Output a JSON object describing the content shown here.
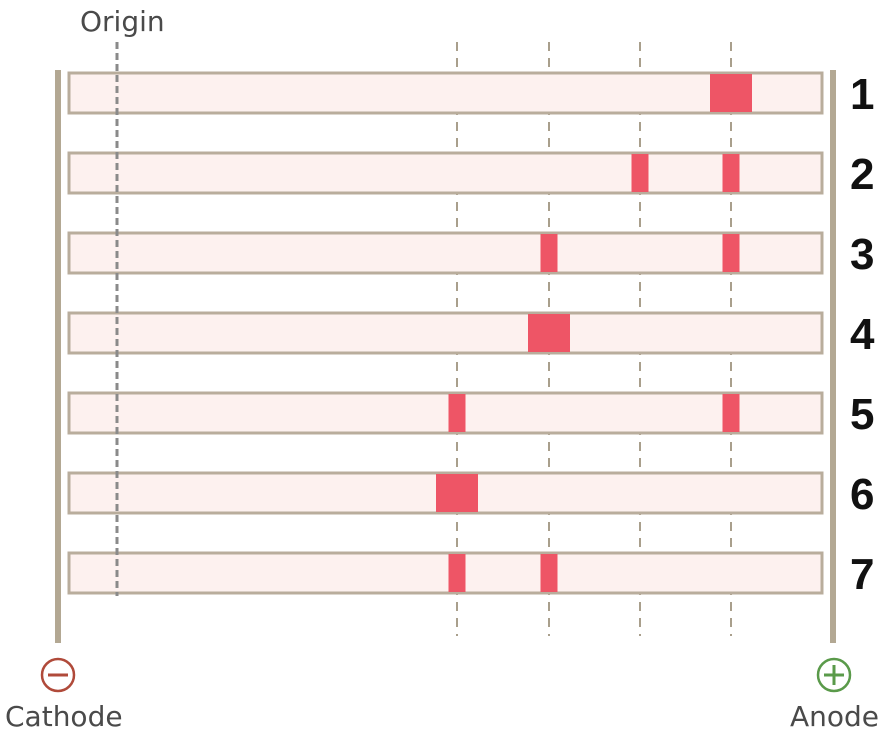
{
  "labels": {
    "origin": "Origin",
    "cathode": "Cathode",
    "anode": "Anode"
  },
  "icons": {
    "cathode": "minus-circle-icon",
    "anode": "plus-circle-icon"
  },
  "colors": {
    "band": "#ee5566",
    "lane_fill": "#fdf1ef",
    "lane_border": "#b9ad9c",
    "electrode": "#b3a893",
    "guide_line": "#a99f8c",
    "cathode_sign": "#b04a3a",
    "anode_sign": "#5a9a4a"
  },
  "lanes": [
    {
      "number": "1",
      "bands": [
        {
          "position": 4,
          "size": "large"
        }
      ]
    },
    {
      "number": "2",
      "bands": [
        {
          "position": 3,
          "size": "small"
        },
        {
          "position": 4,
          "size": "small"
        }
      ]
    },
    {
      "number": "3",
      "bands": [
        {
          "position": 2,
          "size": "small"
        },
        {
          "position": 4,
          "size": "small"
        }
      ]
    },
    {
      "number": "4",
      "bands": [
        {
          "position": 2,
          "size": "large"
        }
      ]
    },
    {
      "number": "5",
      "bands": [
        {
          "position": 1,
          "size": "small"
        },
        {
          "position": 4,
          "size": "small"
        }
      ]
    },
    {
      "number": "6",
      "bands": [
        {
          "position": 1,
          "size": "large"
        }
      ]
    },
    {
      "number": "7",
      "bands": [
        {
          "position": 1,
          "size": "small"
        },
        {
          "position": 2,
          "size": "small"
        }
      ]
    }
  ]
}
